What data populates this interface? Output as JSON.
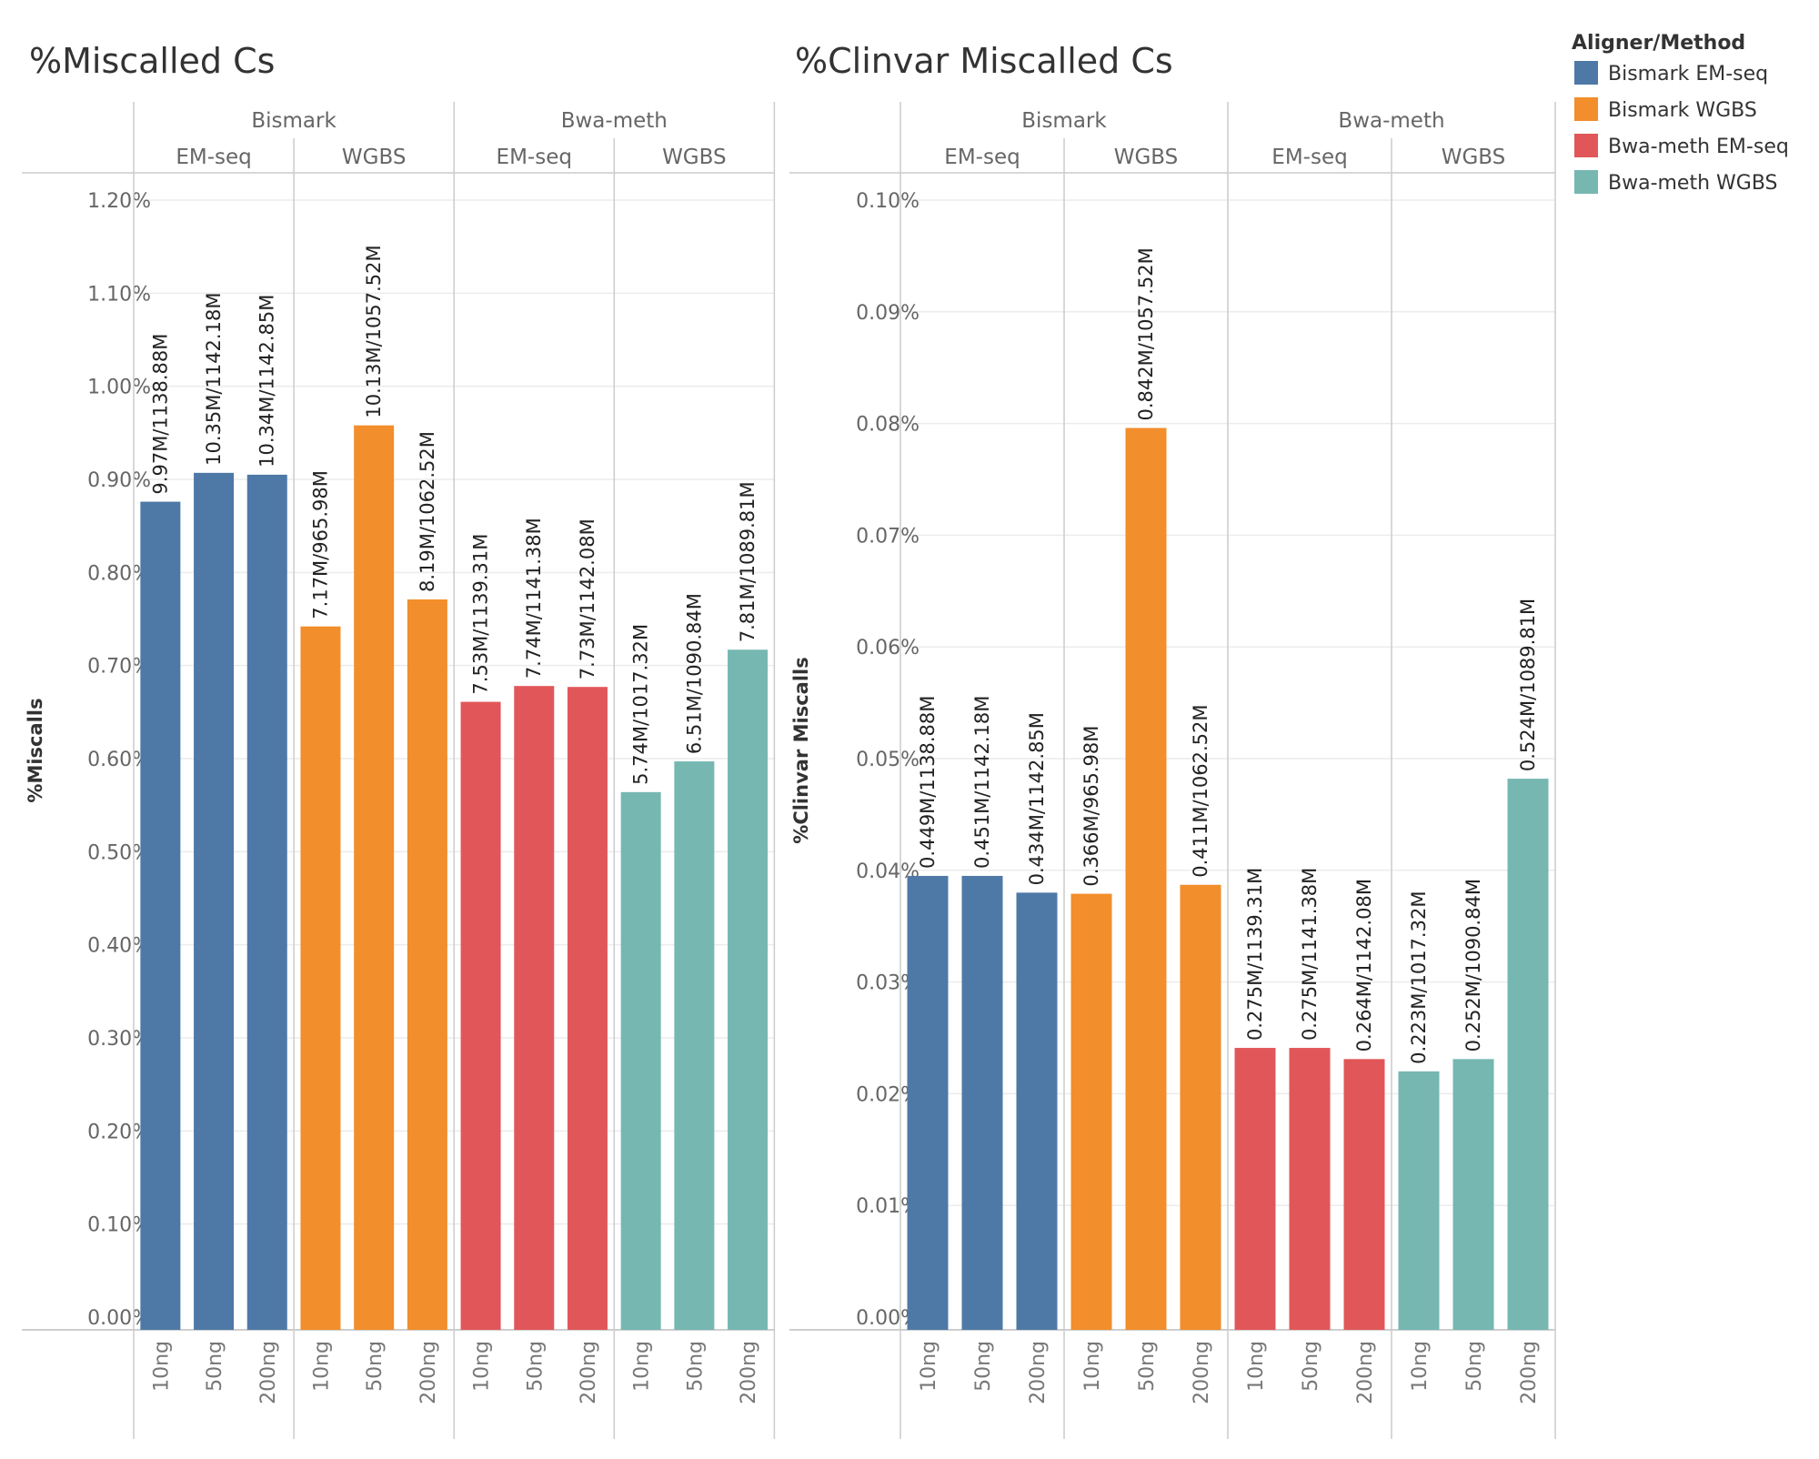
{
  "legend": {
    "title": "Aligner/Method",
    "items": [
      {
        "label": "Bismark EM-seq",
        "color": "#4e79a7"
      },
      {
        "label": "Bismark WGBS",
        "color": "#f28e2b"
      },
      {
        "label": "Bwa-meth EM-seq",
        "color": "#e15759"
      },
      {
        "label": "Bwa-meth WGBS",
        "color": "#76b7b2"
      }
    ]
  },
  "chart_data": [
    {
      "type": "bar",
      "title": "%Miscalled Cs",
      "ylabel": "%Miscalls",
      "ylim": [
        0,
        1.2
      ],
      "yticks": [
        "0.00%",
        "0.10%",
        "0.20%",
        "0.30%",
        "0.40%",
        "0.50%",
        "0.60%",
        "0.70%",
        "0.80%",
        "0.90%",
        "1.00%",
        "1.10%",
        "1.20%"
      ],
      "aligners": [
        "Bismark",
        "Bwa-meth"
      ],
      "methods": [
        "EM-seq",
        "WGBS"
      ],
      "categories": [
        "10ng",
        "50ng",
        "200ng"
      ],
      "grid": true,
      "series": [
        {
          "aligner": "Bismark",
          "method": "EM-seq",
          "color_index": 0,
          "values": [
            0.876,
            0.907,
            0.905
          ],
          "labels": [
            "9.97M/1138.88M",
            "10.35M/1142.18M",
            "10.34M/1142.85M"
          ]
        },
        {
          "aligner": "Bismark",
          "method": "WGBS",
          "color_index": 1,
          "values": [
            0.742,
            0.958,
            0.771
          ],
          "labels": [
            "7.17M/965.98M",
            "10.13M/1057.52M",
            "8.19M/1062.52M"
          ]
        },
        {
          "aligner": "Bwa-meth",
          "method": "EM-seq",
          "color_index": 2,
          "values": [
            0.661,
            0.678,
            0.677
          ],
          "labels": [
            "7.53M/1139.31M",
            "7.74M/1141.38M",
            "7.73M/1142.08M"
          ]
        },
        {
          "aligner": "Bwa-meth",
          "method": "WGBS",
          "color_index": 3,
          "values": [
            0.564,
            0.597,
            0.717
          ],
          "labels": [
            "5.74M/1017.32M",
            "6.51M/1090.84M",
            "7.81M/1089.81M"
          ]
        }
      ]
    },
    {
      "type": "bar",
      "title": "%Clinvar Miscalled Cs",
      "ylabel": "%Clinvar Miscalls",
      "ylim": [
        0,
        0.1
      ],
      "yticks": [
        "0.00%",
        "0.01%",
        "0.02%",
        "0.03%",
        "0.04%",
        "0.05%",
        "0.06%",
        "0.07%",
        "0.08%",
        "0.09%",
        "0.10%"
      ],
      "aligners": [
        "Bismark",
        "Bwa-meth"
      ],
      "methods": [
        "EM-seq",
        "WGBS"
      ],
      "categories": [
        "10ng",
        "50ng",
        "200ng"
      ],
      "grid": true,
      "series": [
        {
          "aligner": "Bismark",
          "method": "EM-seq",
          "color_index": 0,
          "values": [
            0.0395,
            0.0395,
            0.038
          ],
          "labels": [
            "0.449M/1138.88M",
            "0.451M/1142.18M",
            "0.434M/1142.85M"
          ]
        },
        {
          "aligner": "Bismark",
          "method": "WGBS",
          "color_index": 1,
          "values": [
            0.0379,
            0.0796,
            0.0387
          ],
          "labels": [
            "0.366M/965.98M",
            "0.842M/1057.52M",
            "0.411M/1062.52M"
          ]
        },
        {
          "aligner": "Bwa-meth",
          "method": "EM-seq",
          "color_index": 2,
          "values": [
            0.0241,
            0.0241,
            0.0231
          ],
          "labels": [
            "0.275M/1139.31M",
            "0.275M/1141.38M",
            "0.264M/1142.08M"
          ]
        },
        {
          "aligner": "Bwa-meth",
          "method": "WGBS",
          "color_index": 3,
          "values": [
            0.022,
            0.0231,
            0.0482
          ],
          "labels": [
            "0.223M/1017.32M",
            "0.252M/1090.84M",
            "0.524M/1089.81M"
          ]
        }
      ]
    }
  ]
}
